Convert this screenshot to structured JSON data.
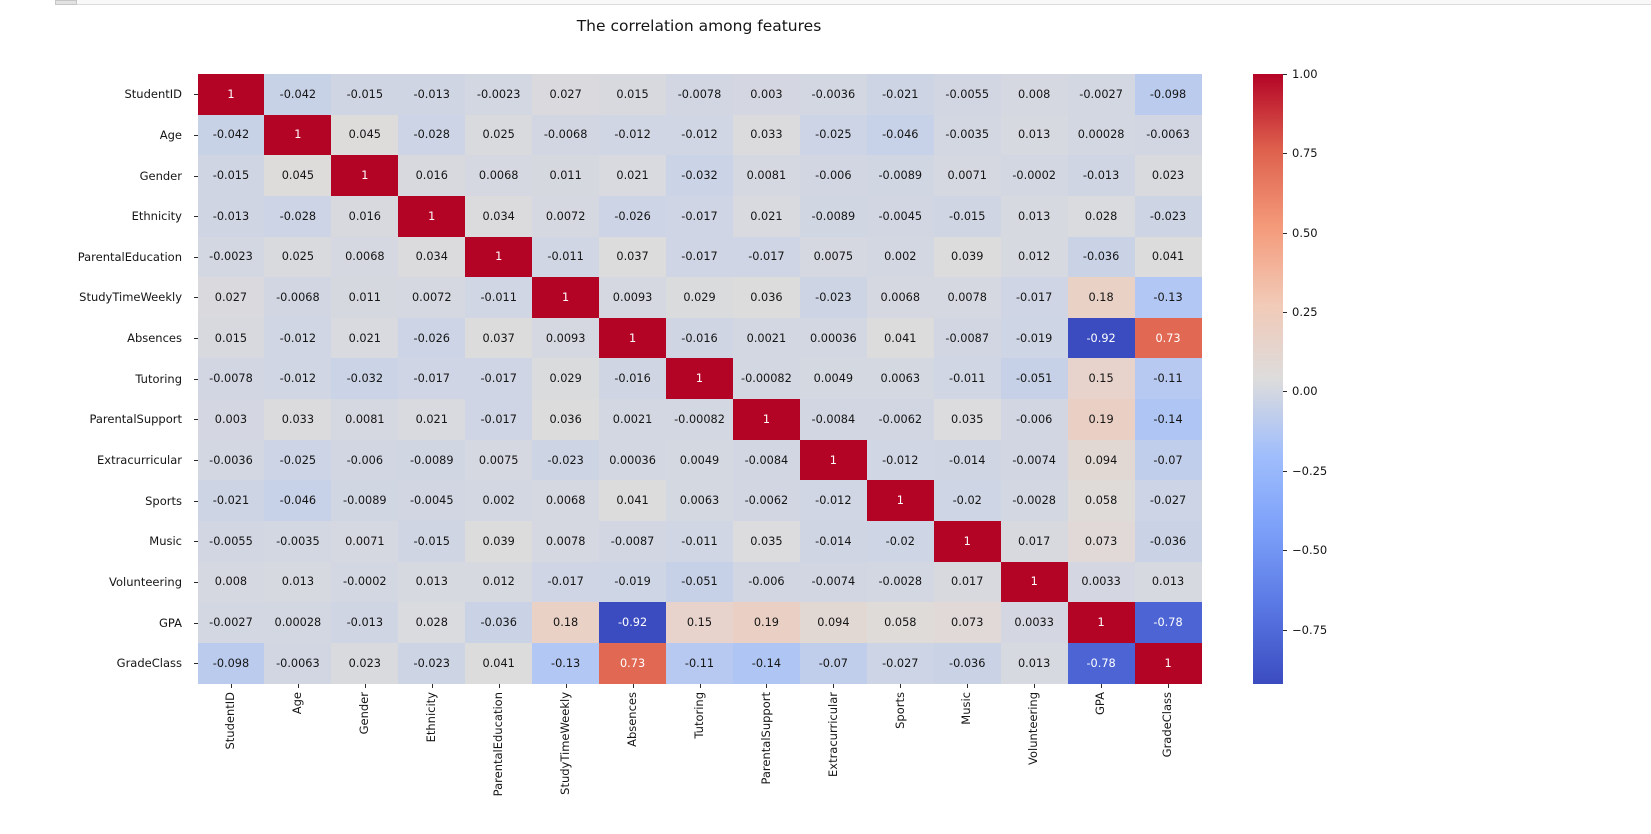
{
  "chart_data": {
    "type": "heatmap",
    "title": "The correlation among features",
    "colormap": "coolwarm",
    "vmin": -0.92,
    "vmax": 1.0,
    "features": [
      "StudentID",
      "Age",
      "Gender",
      "Ethnicity",
      "ParentalEducation",
      "StudyTimeWeekly",
      "Absences",
      "Tutoring",
      "ParentalSupport",
      "Extracurricular",
      "Sports",
      "Music",
      "Volunteering",
      "GPA",
      "GradeClass"
    ],
    "matrix_display": [
      [
        "1",
        "-0.042",
        "-0.015",
        "-0.013",
        "-0.0023",
        "0.027",
        "0.015",
        "-0.0078",
        "0.003",
        "-0.0036",
        "-0.021",
        "-0.0055",
        "0.008",
        "-0.0027",
        "-0.098"
      ],
      [
        "-0.042",
        "1",
        "0.045",
        "-0.028",
        "0.025",
        "-0.0068",
        "-0.012",
        "-0.012",
        "0.033",
        "-0.025",
        "-0.046",
        "-0.0035",
        "0.013",
        "0.00028",
        "-0.0063"
      ],
      [
        "-0.015",
        "0.045",
        "1",
        "0.016",
        "0.0068",
        "0.011",
        "0.021",
        "-0.032",
        "0.0081",
        "-0.006",
        "-0.0089",
        "0.0071",
        "-0.0002",
        "-0.013",
        "0.023"
      ],
      [
        "-0.013",
        "-0.028",
        "0.016",
        "1",
        "0.034",
        "0.0072",
        "-0.026",
        "-0.017",
        "0.021",
        "-0.0089",
        "-0.0045",
        "-0.015",
        "0.013",
        "0.028",
        "-0.023"
      ],
      [
        "-0.0023",
        "0.025",
        "0.0068",
        "0.034",
        "1",
        "-0.011",
        "0.037",
        "-0.017",
        "-0.017",
        "0.0075",
        "0.002",
        "0.039",
        "0.012",
        "-0.036",
        "0.041"
      ],
      [
        "0.027",
        "-0.0068",
        "0.011",
        "0.0072",
        "-0.011",
        "1",
        "0.0093",
        "0.029",
        "0.036",
        "-0.023",
        "0.0068",
        "0.0078",
        "-0.017",
        "0.18",
        "-0.13"
      ],
      [
        "0.015",
        "-0.012",
        "0.021",
        "-0.026",
        "0.037",
        "0.0093",
        "1",
        "-0.016",
        "0.0021",
        "0.00036",
        "0.041",
        "-0.0087",
        "-0.019",
        "-0.92",
        "0.73"
      ],
      [
        "-0.0078",
        "-0.012",
        "-0.032",
        "-0.017",
        "-0.017",
        "0.029",
        "-0.016",
        "1",
        "-0.00082",
        "0.0049",
        "0.0063",
        "-0.011",
        "-0.051",
        "0.15",
        "-0.11"
      ],
      [
        "0.003",
        "0.033",
        "0.0081",
        "0.021",
        "-0.017",
        "0.036",
        "0.0021",
        "-0.00082",
        "1",
        "-0.0084",
        "-0.0062",
        "0.035",
        "-0.006",
        "0.19",
        "-0.14"
      ],
      [
        "-0.0036",
        "-0.025",
        "-0.006",
        "-0.0089",
        "0.0075",
        "-0.023",
        "0.00036",
        "0.0049",
        "-0.0084",
        "1",
        "-0.012",
        "-0.014",
        "-0.0074",
        "0.094",
        "-0.07"
      ],
      [
        "-0.021",
        "-0.046",
        "-0.0089",
        "-0.0045",
        "0.002",
        "0.0068",
        "0.041",
        "0.0063",
        "-0.0062",
        "-0.012",
        "1",
        "-0.02",
        "-0.0028",
        "0.058",
        "-0.027"
      ],
      [
        "-0.0055",
        "-0.0035",
        "0.0071",
        "-0.015",
        "0.039",
        "0.0078",
        "-0.0087",
        "-0.011",
        "0.035",
        "-0.014",
        "-0.02",
        "1",
        "0.017",
        "0.073",
        "-0.036"
      ],
      [
        "0.008",
        "0.013",
        "-0.0002",
        "0.013",
        "0.012",
        "-0.017",
        "-0.019",
        "-0.051",
        "-0.006",
        "-0.0074",
        "-0.0028",
        "0.017",
        "1",
        "0.0033",
        "0.013"
      ],
      [
        "-0.0027",
        "0.00028",
        "-0.013",
        "0.028",
        "-0.036",
        "0.18",
        "-0.92",
        "0.15",
        "0.19",
        "0.094",
        "0.058",
        "0.073",
        "0.0033",
        "1",
        "-0.78"
      ],
      [
        "-0.098",
        "-0.0063",
        "0.023",
        "-0.023",
        "0.041",
        "-0.13",
        "0.73",
        "-0.11",
        "-0.14",
        "-0.07",
        "-0.027",
        "-0.036",
        "0.013",
        "-0.78",
        "1"
      ]
    ],
    "colorbar_ticks": [
      {
        "label": "1.00",
        "value": 1.0
      },
      {
        "label": "0.75",
        "value": 0.75
      },
      {
        "label": "0.50",
        "value": 0.5
      },
      {
        "label": "0.25",
        "value": 0.25
      },
      {
        "label": "0.00",
        "value": 0.0
      },
      {
        "label": "−0.25",
        "value": -0.25
      },
      {
        "label": "−0.50",
        "value": -0.5
      },
      {
        "label": "−0.75",
        "value": -0.75
      }
    ],
    "colors": {
      "strong_positive": "#b40426",
      "neutral": "#dddcdc",
      "strong_negative": "#3b4cc0",
      "annotation_dark": "#151515",
      "annotation_light": "#ffffff"
    }
  }
}
